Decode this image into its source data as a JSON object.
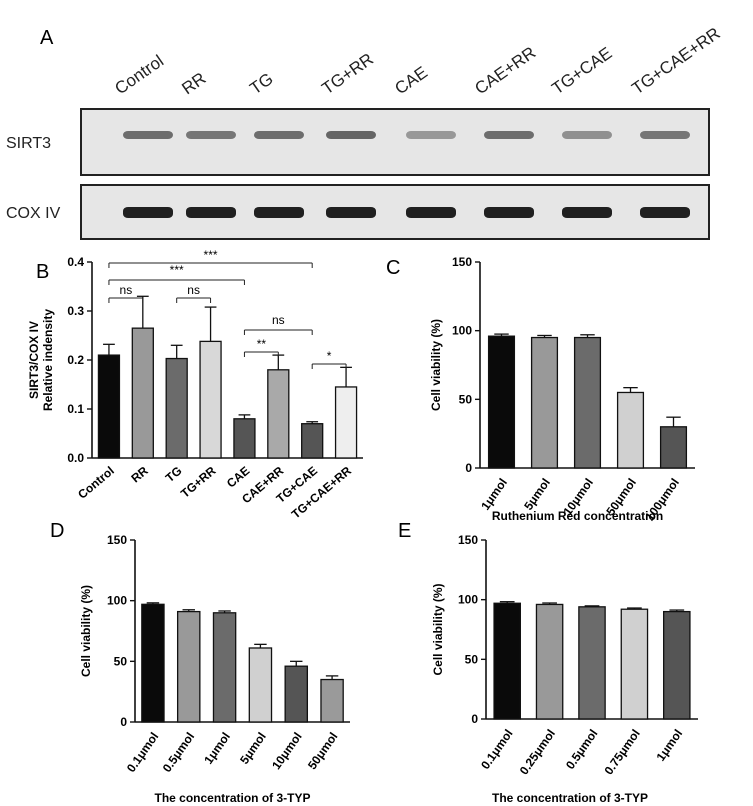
{
  "panel_A": {
    "letter": "A",
    "lanes": [
      "Control",
      "RR",
      "TG",
      "TG+RR",
      "CAE",
      "CAE+RR",
      "TG+CAE",
      "TG+CAE+RR"
    ],
    "blots": [
      {
        "label": "SIRT3",
        "intensities": [
          0.55,
          0.5,
          0.55,
          0.6,
          0.3,
          0.55,
          0.35,
          0.5
        ]
      },
      {
        "label": "COX IV",
        "intensities": [
          1,
          1,
          1,
          1,
          1,
          1,
          1,
          1
        ]
      }
    ]
  },
  "chart_data": [
    {
      "panel": "B",
      "type": "bar",
      "ylabel": "SIRT3/COX IV\nRelative indensity",
      "xlabel": "",
      "categories": [
        "Control",
        "RR",
        "TG",
        "TG+RR",
        "CAE",
        "CAE+RR",
        "TG+CAE",
        "TG+CAE+RR"
      ],
      "values": [
        0.21,
        0.265,
        0.203,
        0.238,
        0.08,
        0.18,
        0.07,
        0.145
      ],
      "errors": [
        0.022,
        0.065,
        0.027,
        0.07,
        0.008,
        0.03,
        0.004,
        0.04
      ],
      "colors": [
        "#0a0a0a",
        "#999999",
        "#6b6b6b",
        "#d8d8d8",
        "#555555",
        "#a9a9a9",
        "#555555",
        "#eeeeee"
      ],
      "yticks": [
        "0.0",
        "0.1",
        "0.2",
        "0.3",
        "0.4"
      ],
      "ylim": [
        0,
        0.4
      ],
      "significance": [
        {
          "from": 0,
          "to": 1,
          "label": "ns"
        },
        {
          "from": 2,
          "to": 3,
          "label": "ns"
        },
        {
          "from": 4,
          "to": 6,
          "label": "ns"
        },
        {
          "from": 4,
          "to": 5,
          "label": "**"
        },
        {
          "from": 6,
          "to": 7,
          "label": "*"
        },
        {
          "from": 0,
          "to": 4,
          "label": "***"
        },
        {
          "from": 0,
          "to": 6,
          "label": "***"
        }
      ]
    },
    {
      "panel": "C",
      "type": "bar",
      "ylabel": "Cell viability (%)",
      "xlabel": "Ruthenium Red concentration",
      "categories": [
        "1μmol",
        "5μmol",
        "10μmol",
        "50μmol",
        "100μmol"
      ],
      "values": [
        96,
        95,
        95,
        55,
        30
      ],
      "errors": [
        1.5,
        1.5,
        2,
        3.5,
        7
      ],
      "colors": [
        "#0a0a0a",
        "#999999",
        "#6b6b6b",
        "#d0d0d0",
        "#555555"
      ],
      "yticks": [
        "0",
        "50",
        "100",
        "150"
      ],
      "ylim": [
        0,
        150
      ]
    },
    {
      "panel": "D",
      "type": "bar",
      "ylabel": "Cell viability (%)",
      "xlabel": "The concentration of 3-TYP",
      "categories": [
        "0.1μmol",
        "0.5μmol",
        "1μmol",
        "5μmol",
        "10μmol",
        "50μmol"
      ],
      "values": [
        97,
        91,
        90,
        61,
        46,
        35
      ],
      "errors": [
        1.2,
        1.5,
        1.5,
        3,
        4,
        3
      ],
      "colors": [
        "#0a0a0a",
        "#999999",
        "#6b6b6b",
        "#d0d0d0",
        "#555555",
        "#9a9a9a"
      ],
      "yticks": [
        "0",
        "50",
        "100",
        "150"
      ],
      "ylim": [
        0,
        150
      ]
    },
    {
      "panel": "E",
      "type": "bar",
      "ylabel": "Cell viability (%)",
      "xlabel": "The concentration of 3-TYP",
      "categories": [
        "0.1μmol",
        "0.25μmol",
        "0.5μmol",
        "0.75μmol",
        "1μmol"
      ],
      "values": [
        97,
        96,
        94,
        92,
        90
      ],
      "errors": [
        1.3,
        1.2,
        0.8,
        1,
        1.3
      ],
      "colors": [
        "#0a0a0a",
        "#999999",
        "#6b6b6b",
        "#d0d0d0",
        "#555555"
      ],
      "yticks": [
        "0",
        "50",
        "100",
        "150"
      ],
      "ylim": [
        0,
        150
      ]
    }
  ]
}
